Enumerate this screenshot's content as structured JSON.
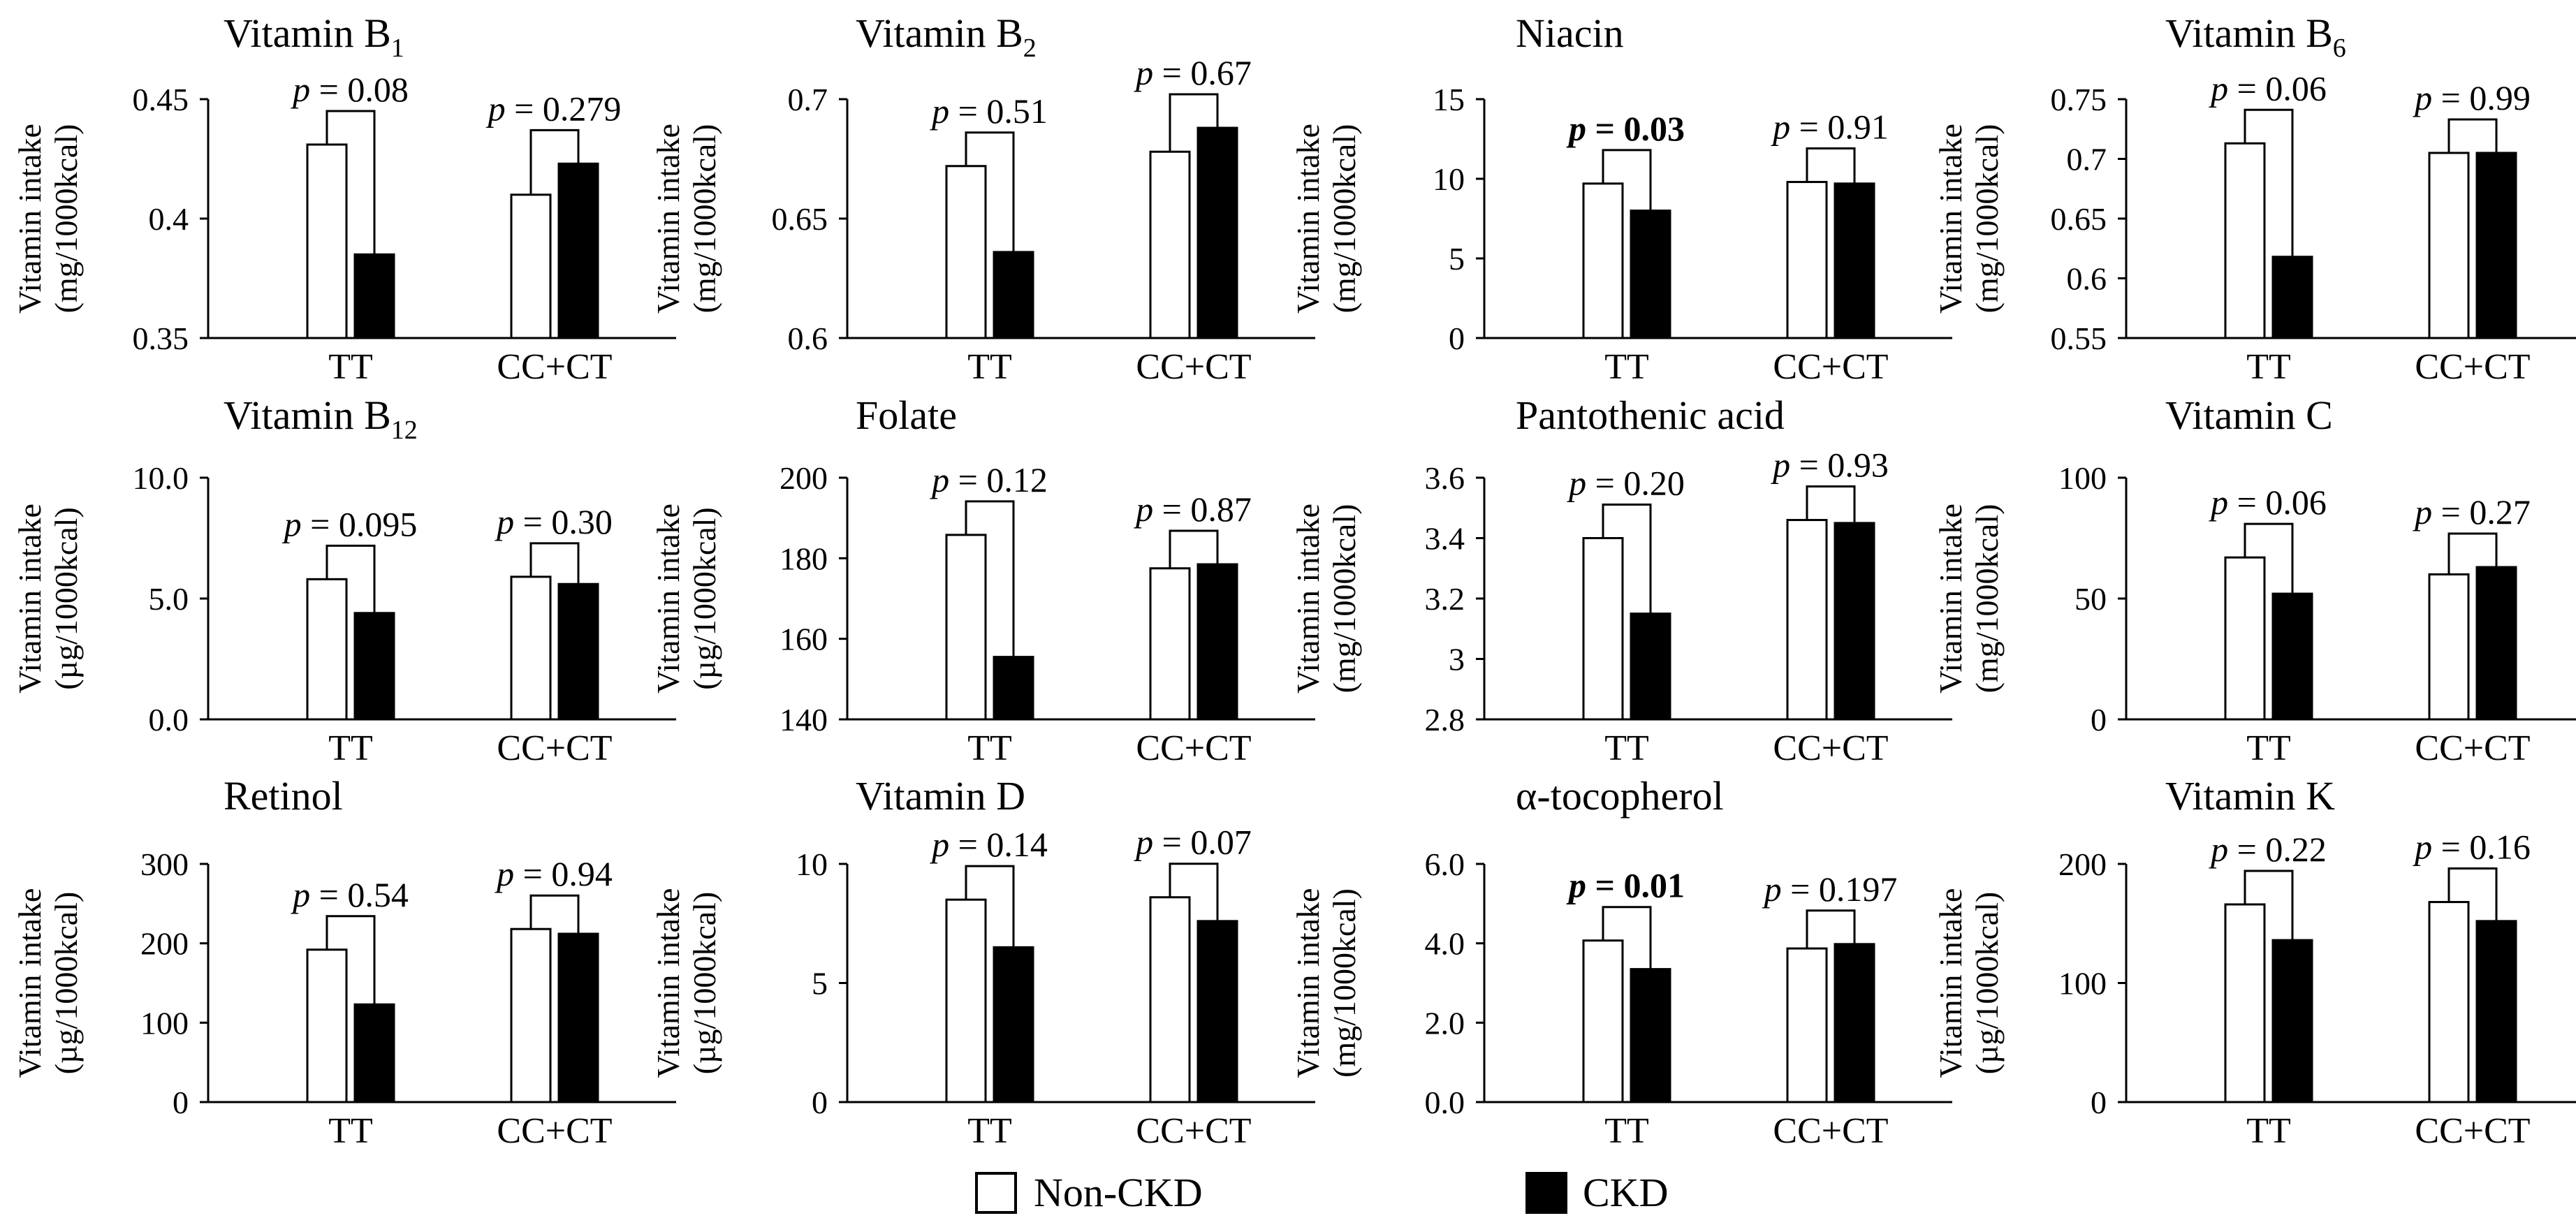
{
  "figure": {
    "legend": [
      {
        "label": "Non-CKD",
        "fill": "#ffffff"
      },
      {
        "label": "CKD",
        "fill": "#000000"
      }
    ],
    "colors": {
      "non_ckd": "#ffffff",
      "ckd": "#000000",
      "stroke": "#000000"
    }
  },
  "chart_data": [
    {
      "type": "bar",
      "title": "Vitamin B",
      "title_sub": "1",
      "ylabel": "Vitamin intake",
      "yunit": "(mg/1000kcal)",
      "ylim": [
        0.35,
        0.45
      ],
      "yticks": [
        "0.35",
        "0.4",
        "0.45"
      ],
      "categories": [
        "TT",
        "CC+CT"
      ],
      "series": [
        {
          "name": "Non-CKD",
          "values": [
            0.431,
            0.41
          ]
        },
        {
          "name": "CKD",
          "values": [
            0.385,
            0.423
          ]
        }
      ],
      "pvalues": [
        "0.08",
        "0.279"
      ],
      "significant": [
        false,
        false
      ]
    },
    {
      "type": "bar",
      "title": "Vitamin B",
      "title_sub": "2",
      "ylabel": "Vitamin intake",
      "yunit": "(mg/1000kcal)",
      "ylim": [
        0.6,
        0.7
      ],
      "yticks": [
        "0.6",
        "0.65",
        "0.7"
      ],
      "categories": [
        "TT",
        "CC+CT"
      ],
      "series": [
        {
          "name": "Non-CKD",
          "values": [
            0.672,
            0.678
          ]
        },
        {
          "name": "CKD",
          "values": [
            0.636,
            0.688
          ]
        }
      ],
      "pvalues": [
        "0.51",
        "0.67"
      ],
      "significant": [
        false,
        false
      ]
    },
    {
      "type": "bar",
      "title": "Niacin",
      "title_sub": "",
      "ylabel": "Vitamin intake",
      "yunit": "(mg/1000kcal)",
      "ylim": [
        0,
        15
      ],
      "yticks": [
        "0",
        "5",
        "10",
        "15"
      ],
      "categories": [
        "TT",
        "CC+CT"
      ],
      "series": [
        {
          "name": "Non-CKD",
          "values": [
            9.7,
            9.8
          ]
        },
        {
          "name": "CKD",
          "values": [
            8.0,
            9.7
          ]
        }
      ],
      "pvalues": [
        "0.03",
        "0.91"
      ],
      "significant": [
        true,
        false
      ]
    },
    {
      "type": "bar",
      "title": "Vitamin B",
      "title_sub": "6",
      "ylabel": "Vitamin intake",
      "yunit": "(mg/1000kcal)",
      "ylim": [
        0.55,
        0.75
      ],
      "yticks": [
        "0.55",
        "0.6",
        "0.65",
        "0.7",
        "0.75"
      ],
      "categories": [
        "TT",
        "CC+CT"
      ],
      "series": [
        {
          "name": "Non-CKD",
          "values": [
            0.713,
            0.705
          ]
        },
        {
          "name": "CKD",
          "values": [
            0.618,
            0.705
          ]
        }
      ],
      "pvalues": [
        "0.06",
        "0.99"
      ],
      "significant": [
        false,
        false
      ]
    },
    {
      "type": "bar",
      "title": "Vitamin B",
      "title_sub": "12",
      "ylabel": "Vitamin intake",
      "yunit": "(µg/1000kcal)",
      "ylim": [
        0,
        10
      ],
      "yticks": [
        "0.0",
        "5.0",
        "10.0"
      ],
      "categories": [
        "TT",
        "CC+CT"
      ],
      "series": [
        {
          "name": "Non-CKD",
          "values": [
            5.8,
            5.9
          ]
        },
        {
          "name": "CKD",
          "values": [
            4.4,
            5.6
          ]
        }
      ],
      "pvalues": [
        "0.095",
        "0.30"
      ],
      "significant": [
        false,
        false
      ]
    },
    {
      "type": "bar",
      "title": "Folate",
      "title_sub": "",
      "ylabel": "Vitamin intake",
      "yunit": "(µg/1000kcal)",
      "ylim": [
        140,
        200
      ],
      "yticks": [
        "140",
        "160",
        "180",
        "200"
      ],
      "categories": [
        "TT",
        "CC+CT"
      ],
      "series": [
        {
          "name": "Non-CKD",
          "values": [
            185.8,
            177.5
          ]
        },
        {
          "name": "CKD",
          "values": [
            155.5,
            178.5
          ]
        }
      ],
      "pvalues": [
        "0.12",
        "0.87"
      ],
      "significant": [
        false,
        false
      ]
    },
    {
      "type": "bar",
      "title": "Pantothenic acid",
      "title_sub": "",
      "ylabel": "Vitamin intake",
      "yunit": "(mg/1000kcal)",
      "ylim": [
        2.8,
        3.6
      ],
      "yticks": [
        "2.8",
        "3",
        "3.2",
        "3.4",
        "3.6"
      ],
      "categories": [
        "TT",
        "CC+CT"
      ],
      "series": [
        {
          "name": "Non-CKD",
          "values": [
            3.4,
            3.46
          ]
        },
        {
          "name": "CKD",
          "values": [
            3.15,
            3.45
          ]
        }
      ],
      "pvalues": [
        "0.20",
        "0.93"
      ],
      "significant": [
        false,
        false
      ]
    },
    {
      "type": "bar",
      "title": "Vitamin C",
      "title_sub": "",
      "ylabel": "Vitamin intake",
      "yunit": "(mg/1000kcal)",
      "ylim": [
        0,
        100
      ],
      "yticks": [
        "0",
        "50",
        "100"
      ],
      "categories": [
        "TT",
        "CC+CT"
      ],
      "series": [
        {
          "name": "Non-CKD",
          "values": [
            67,
            60
          ]
        },
        {
          "name": "CKD",
          "values": [
            52,
            63
          ]
        }
      ],
      "pvalues": [
        "0.06",
        "0.27"
      ],
      "significant": [
        false,
        false
      ]
    },
    {
      "type": "bar",
      "title": "Retinol",
      "title_sub": "",
      "ylabel": "Vitamin intake",
      "yunit": "(µg/1000kcal)",
      "ylim": [
        0,
        300
      ],
      "yticks": [
        "0",
        "100",
        "200",
        "300"
      ],
      "categories": [
        "TT",
        "CC+CT"
      ],
      "series": [
        {
          "name": "Non-CKD",
          "values": [
            192,
            218
          ]
        },
        {
          "name": "CKD",
          "values": [
            123,
            212
          ]
        }
      ],
      "pvalues": [
        "0.54",
        "0.94"
      ],
      "significant": [
        false,
        false
      ]
    },
    {
      "type": "bar",
      "title": "Vitamin D",
      "title_sub": "",
      "ylabel": "Vitamin intake",
      "yunit": "(µg/1000kcal)",
      "ylim": [
        0,
        10
      ],
      "yticks": [
        "0",
        "5",
        "10"
      ],
      "categories": [
        "TT",
        "CC+CT"
      ],
      "series": [
        {
          "name": "Non-CKD",
          "values": [
            8.5,
            8.6
          ]
        },
        {
          "name": "CKD",
          "values": [
            6.5,
            7.6
          ]
        }
      ],
      "pvalues": [
        "0.14",
        "0.07"
      ],
      "significant": [
        false,
        false
      ]
    },
    {
      "type": "bar",
      "title": "α-tocopherol",
      "title_sub": "",
      "ylabel": "Vitamin intake",
      "yunit": "(mg/1000kcal)",
      "ylim": [
        0,
        6
      ],
      "yticks": [
        "0.0",
        "2.0",
        "4.0",
        "6.0"
      ],
      "categories": [
        "TT",
        "CC+CT"
      ],
      "series": [
        {
          "name": "Non-CKD",
          "values": [
            4.07,
            3.87
          ]
        },
        {
          "name": "CKD",
          "values": [
            3.35,
            3.98
          ]
        }
      ],
      "pvalues": [
        "0.01",
        "0.197"
      ],
      "significant": [
        true,
        false
      ]
    },
    {
      "type": "bar",
      "title": "Vitamin K",
      "title_sub": "",
      "ylabel": "Vitamin intake",
      "yunit": "(µg/1000kcal)",
      "ylim": [
        0,
        200
      ],
      "yticks": [
        "0",
        "100",
        "200"
      ],
      "categories": [
        "TT",
        "CC+CT"
      ],
      "series": [
        {
          "name": "Non-CKD",
          "values": [
            166,
            168
          ]
        },
        {
          "name": "CKD",
          "values": [
            136,
            152
          ]
        }
      ],
      "pvalues": [
        "0.22",
        "0.16"
      ],
      "significant": [
        false,
        false
      ]
    }
  ]
}
